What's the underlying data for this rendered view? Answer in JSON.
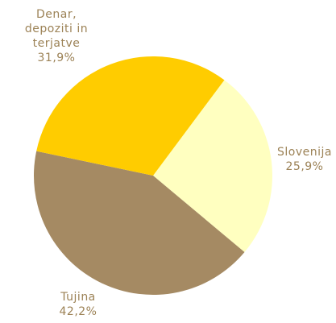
{
  "chart_data": {
    "type": "pie",
    "categories": [
      "Slovenija",
      "Tujina",
      "Denar, depoziti in terjatve"
    ],
    "values": [
      25.9,
      42.2,
      31.9
    ],
    "value_labels": [
      "25,9%",
      "42,2%",
      "31,9%"
    ],
    "colors": [
      "#ffffc0",
      "#a58a63",
      "#ffcc00"
    ]
  }
}
